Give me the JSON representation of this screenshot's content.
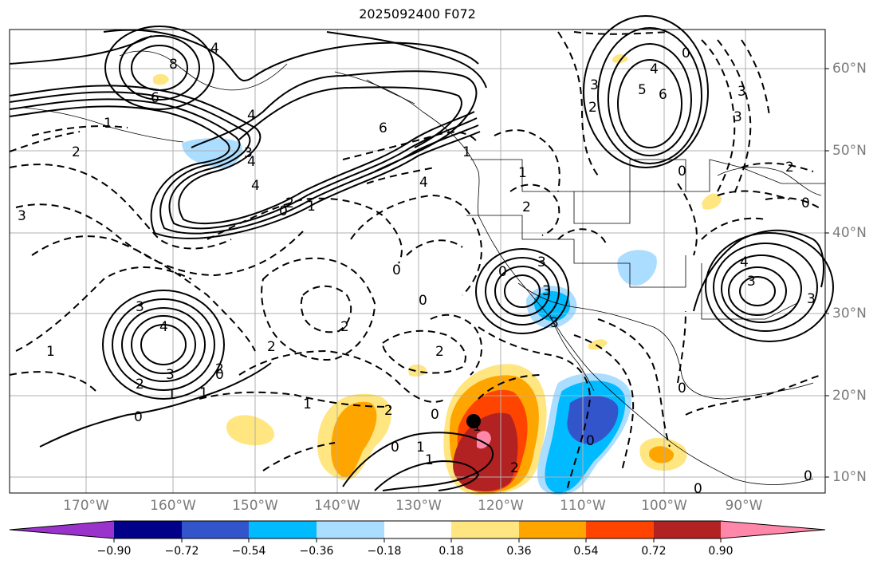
{
  "title": "2025092400 F072",
  "longitude_labels": [
    "170°W",
    "160°W",
    "150°W",
    "140°W",
    "130°W",
    "120°W",
    "110°W",
    "100°W",
    "90°W"
  ],
  "latitude_labels": [
    "60°N",
    "50°N",
    "40°N",
    "30°N",
    "20°N",
    "10°N"
  ],
  "colorbar": {
    "ticks": [
      "−0.90",
      "−0.72",
      "−0.54",
      "−0.36",
      "−0.18",
      "0.18",
      "0.36",
      "0.54",
      "0.72",
      "0.90"
    ],
    "colors": [
      "#9933cc",
      "#000088",
      "#3355cc",
      "#00bbff",
      "#aaddff",
      "#ffffff",
      "#ffe680",
      "#ffa500",
      "#ff4400",
      "#b22222",
      "#ff88aa"
    ]
  },
  "contour_labels": [
    "8",
    "4",
    "6",
    "4",
    "6",
    "6",
    "5",
    "4",
    "3",
    "2",
    "3",
    "4",
    "3",
    "2",
    "1",
    "0",
    "2",
    "4",
    "1",
    "3",
    "3",
    "4",
    "3",
    "2",
    "1",
    "0",
    "1",
    "2",
    "2",
    "1",
    "0",
    "0",
    "1",
    "2",
    "3",
    "0",
    "3",
    "2",
    "1",
    "0",
    "1",
    "0",
    "0",
    "2",
    "4",
    "3",
    "2",
    "1",
    "0",
    "0",
    "1",
    "2",
    "3",
    "4",
    "3",
    "0",
    "2",
    "0",
    "0",
    "0",
    "1",
    "3",
    "0"
  ],
  "colors": {
    "axis_text": "#7a7a7a",
    "grid": "#b0b0b0",
    "contour": "#000000"
  }
}
